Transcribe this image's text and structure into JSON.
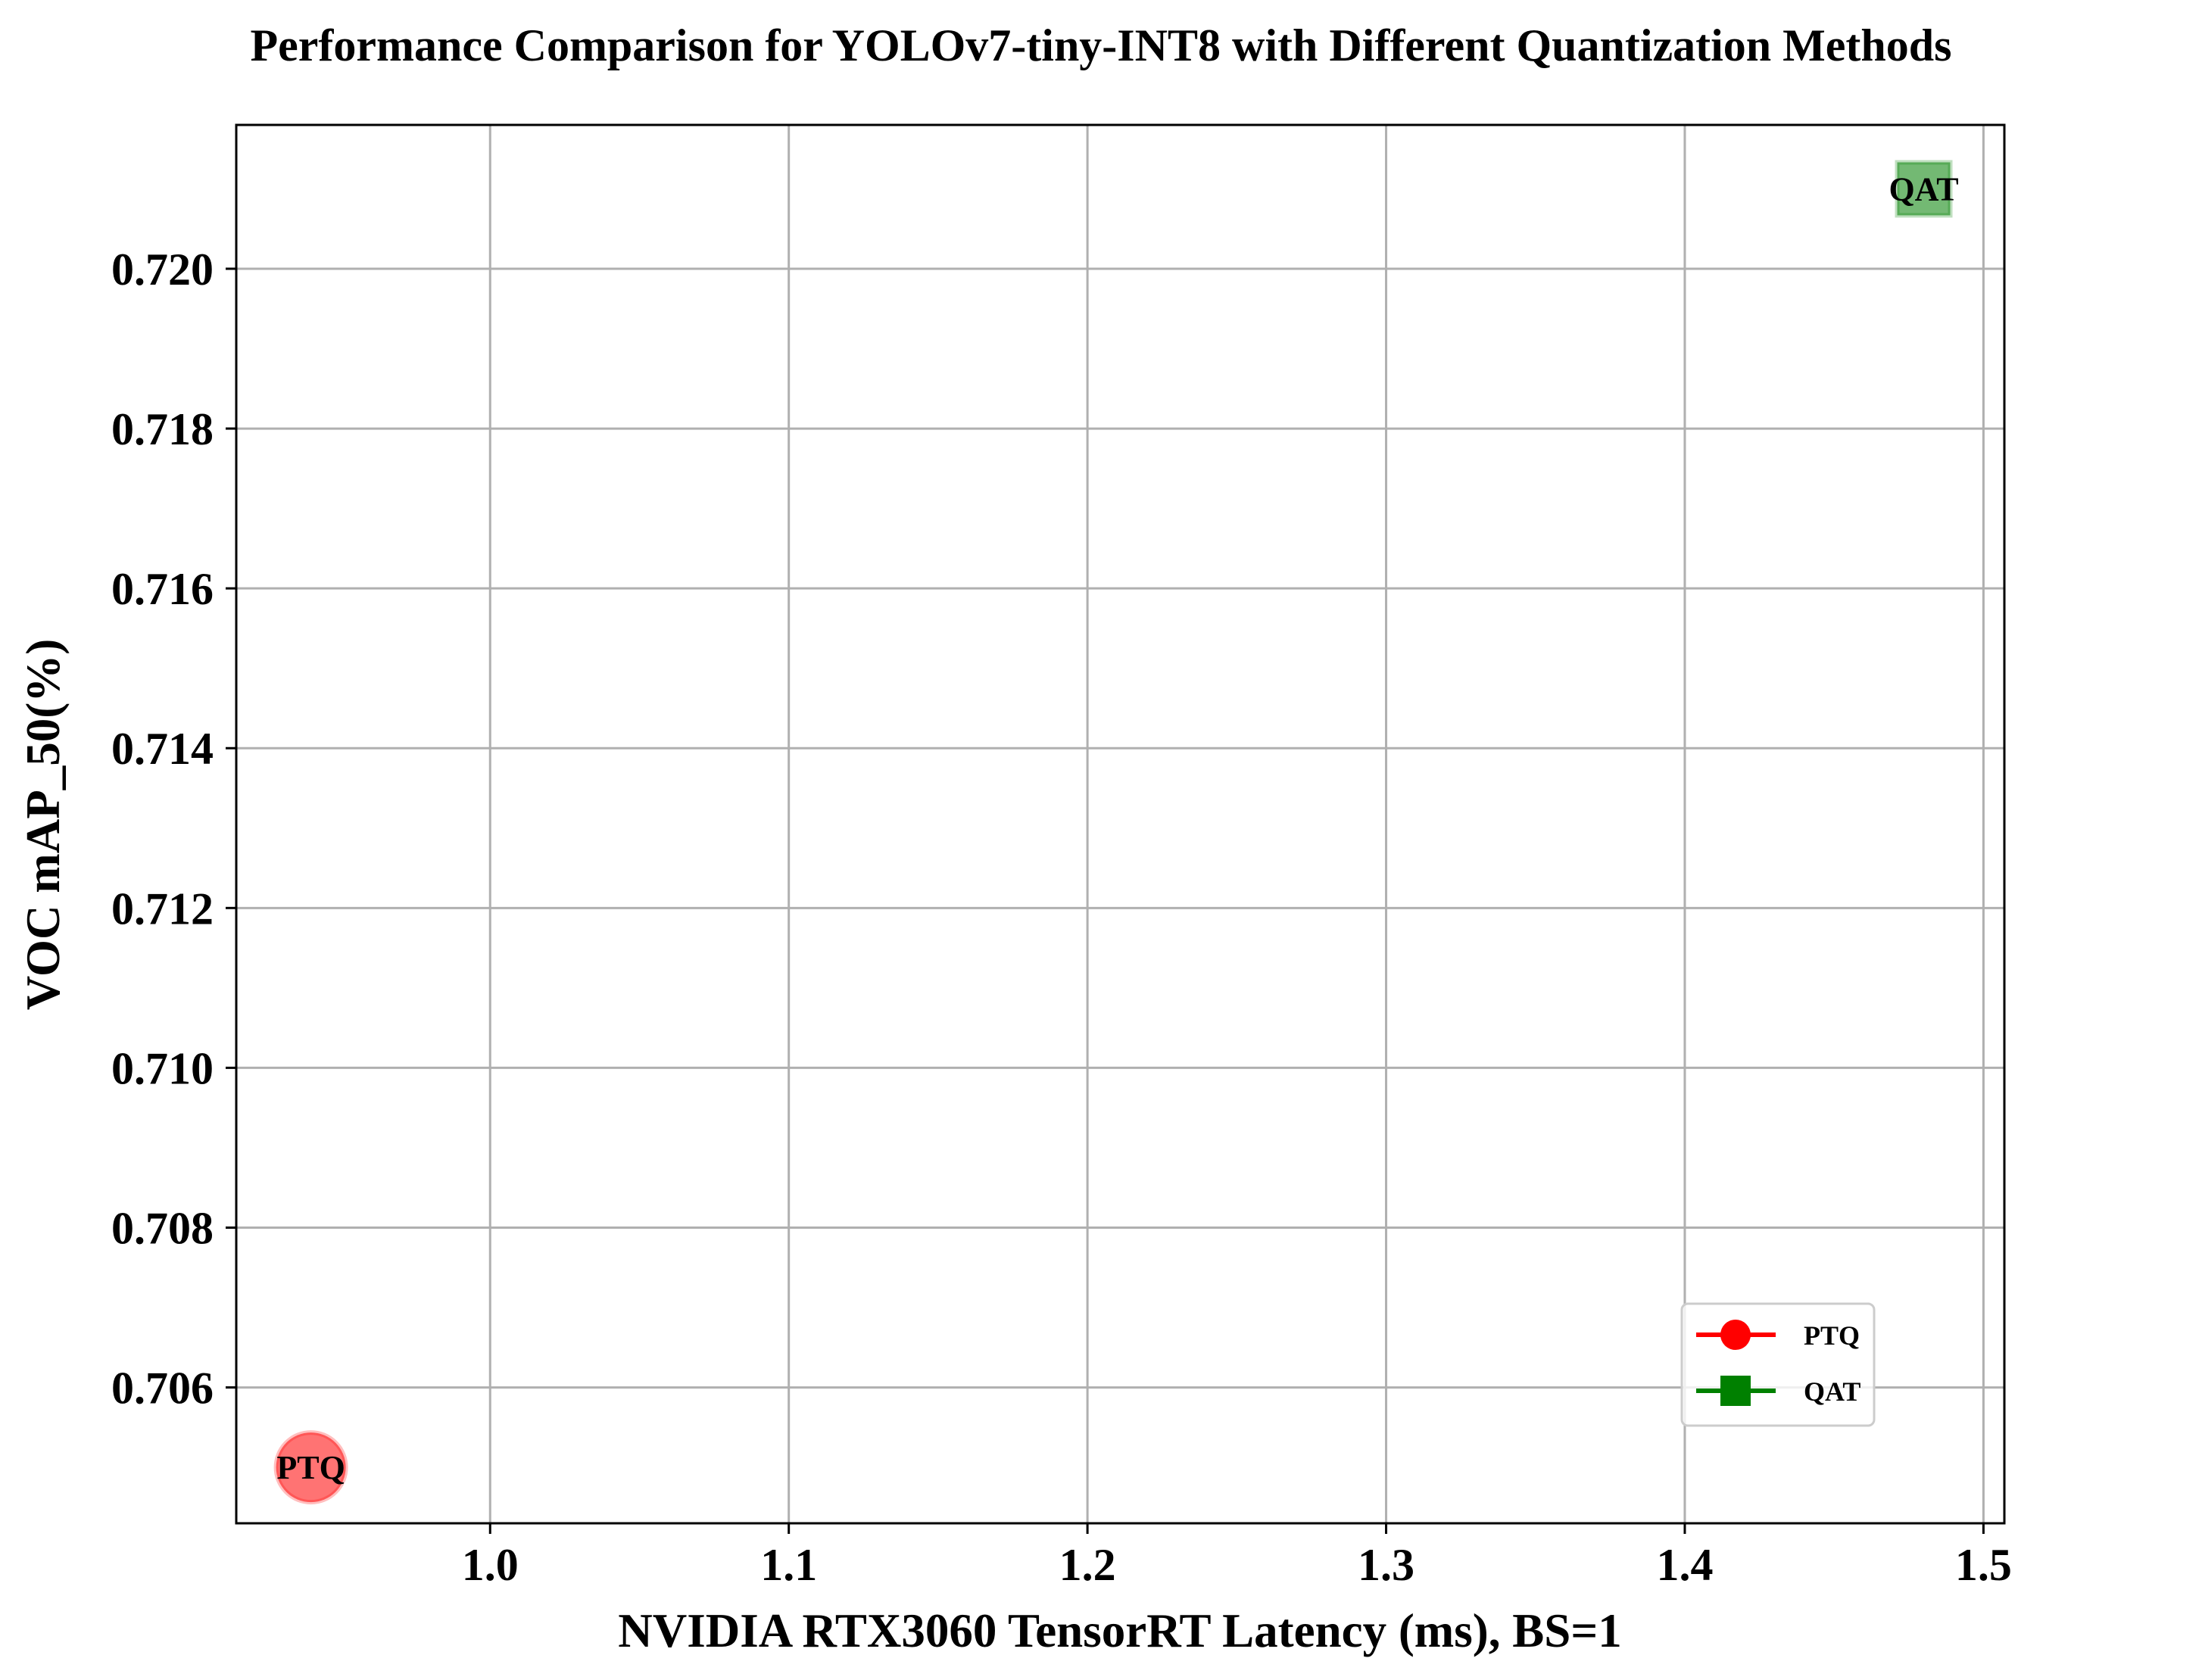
{
  "chart_data": {
    "type": "scatter",
    "title": "Performance Comparison for YOLOv7-tiny-INT8 with Different Quantization Methods",
    "xlabel": "NVIDIA RTX3060 TensorRT Latency (ms), BS=1",
    "ylabel": "VOC mAP_50(%)",
    "xlim": [
      0.915,
      1.507
    ],
    "ylim": [
      0.7043,
      0.7218
    ],
    "xticks": [
      1.0,
      1.1,
      1.2,
      1.3,
      1.4,
      1.5
    ],
    "xtick_labels": [
      "1.0",
      "1.1",
      "1.2",
      "1.3",
      "1.4",
      "1.5"
    ],
    "yticks": [
      0.706,
      0.708,
      0.71,
      0.712,
      0.714,
      0.716,
      0.718,
      0.72
    ],
    "ytick_labels": [
      "0.706",
      "0.708",
      "0.710",
      "0.712",
      "0.714",
      "0.716",
      "0.718",
      "0.720"
    ],
    "grid": true,
    "legend_position": "lower-right",
    "series": [
      {
        "name": "PTQ",
        "marker": "circle",
        "color": "#ff0000",
        "x": [
          0.94
        ],
        "y": [
          0.705
        ],
        "labels": [
          "PTQ"
        ]
      },
      {
        "name": "QAT",
        "marker": "square",
        "color": "#008000",
        "x": [
          1.48
        ],
        "y": [
          0.721
        ],
        "labels": [
          "QAT"
        ]
      }
    ]
  }
}
